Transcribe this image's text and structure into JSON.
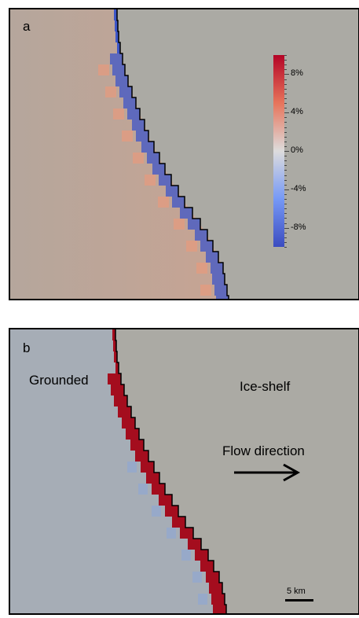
{
  "panel_a": {
    "letter": "a",
    "colorbar": {
      "ticks": [
        "8%",
        "4%",
        "0%",
        "-4%",
        "-8%"
      ],
      "colors": {
        "max": "#b40426",
        "mid": "#dddcdc",
        "min": "#3b4cc0"
      }
    }
  },
  "panel_b": {
    "letter": "b",
    "labels": {
      "grounded": "Grounded",
      "ice_shelf": "Ice-shelf",
      "flow_direction": "Flow direction"
    },
    "scale_bar": "5 km"
  },
  "colors": {
    "background": "#abaaa4",
    "grounded_b": "#a6adb6",
    "grounding_line": "#000000",
    "band_red": "#a40d1e",
    "band_blue": "#3d56c8"
  }
}
